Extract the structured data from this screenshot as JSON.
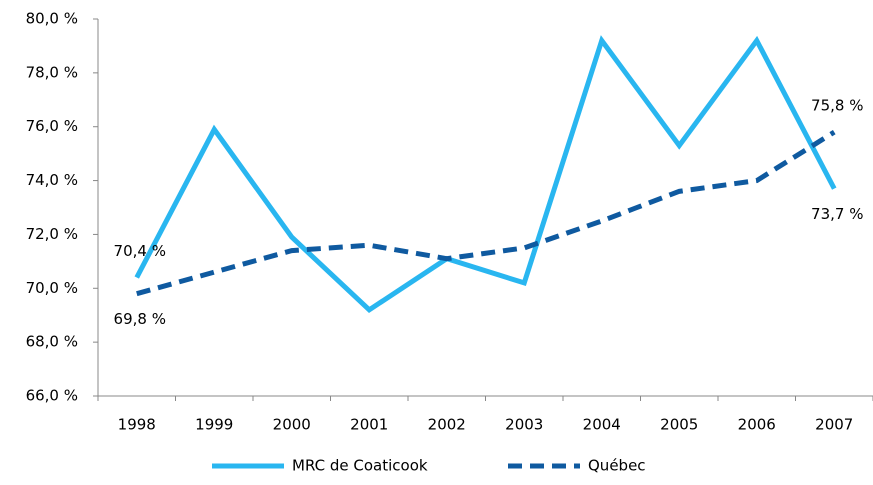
{
  "chart_data": {
    "type": "line",
    "categories": [
      "1998",
      "1999",
      "2000",
      "2001",
      "2002",
      "2003",
      "2004",
      "2005",
      "2006",
      "2007"
    ],
    "series": [
      {
        "name": "MRC de Coaticook",
        "color": "#29b6f0",
        "dash": false,
        "values": [
          70.4,
          75.9,
          71.9,
          69.2,
          71.1,
          70.2,
          79.2,
          75.3,
          79.2,
          73.7
        ],
        "value_labels": [
          "70,4 %",
          null,
          null,
          null,
          null,
          null,
          null,
          null,
          null,
          "73,7 %"
        ]
      },
      {
        "name": "Québec",
        "color": "#0f5aa0",
        "dash": true,
        "values": [
          69.8,
          70.6,
          71.4,
          71.6,
          71.1,
          71.5,
          72.5,
          73.6,
          74.0,
          75.8
        ],
        "value_labels": [
          "69,8 %",
          null,
          null,
          null,
          null,
          null,
          null,
          null,
          null,
          "75,8 %"
        ]
      }
    ],
    "ylim": [
      66,
      80
    ],
    "yticks": [
      {
        "value": 66,
        "label": "66,0 %"
      },
      {
        "value": 68,
        "label": "68,0 %"
      },
      {
        "value": 70,
        "label": "70,0 %"
      },
      {
        "value": 72,
        "label": "72,0 %"
      },
      {
        "value": 74,
        "label": "74,0 %"
      },
      {
        "value": 76,
        "label": "76,0 %"
      },
      {
        "value": 78,
        "label": "78,0 %"
      },
      {
        "value": 80,
        "label": "80,0 %"
      }
    ],
    "grid": false,
    "legend": "bottom"
  }
}
